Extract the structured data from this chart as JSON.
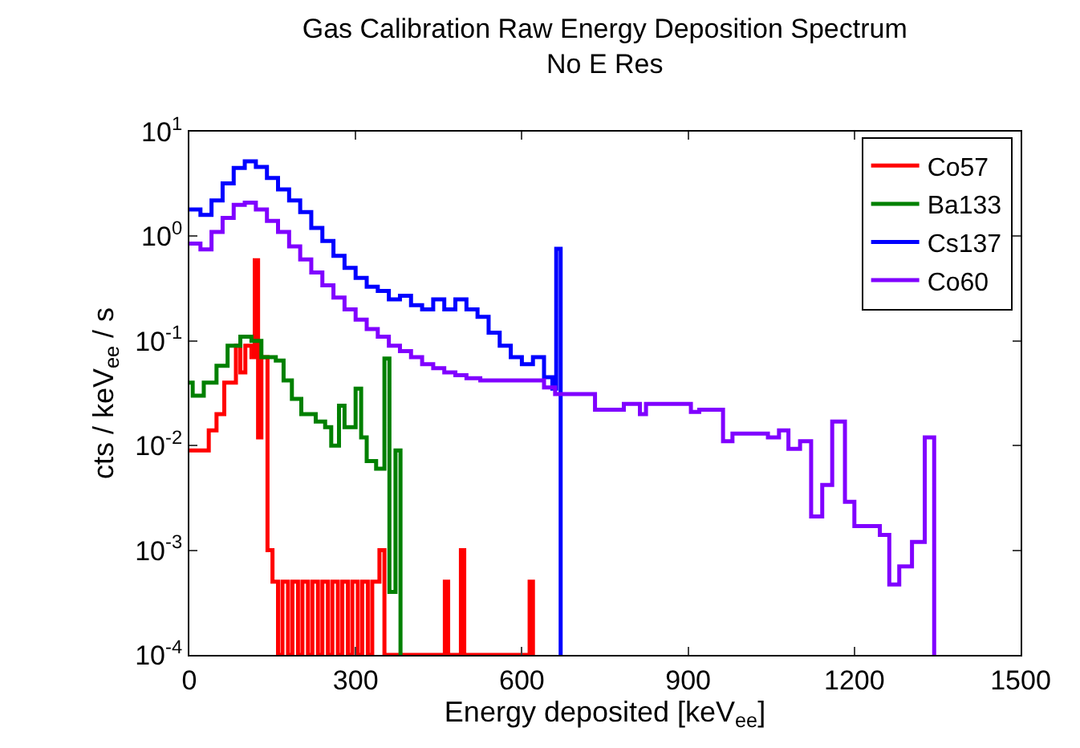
{
  "chart_data": {
    "type": "step",
    "title": "Gas Calibration Raw Energy Deposition Spectrum",
    "subtitle": "No E Res",
    "xlabel": "Energy deposited [keV$_{ee}$]",
    "ylabel": "cts / keV$_{ee}$ / s",
    "log": "y",
    "xlim": [
      0,
      1500
    ],
    "xticks": [
      0,
      300,
      600,
      900,
      1200,
      1500
    ],
    "ylim": [
      0.0001,
      10
    ],
    "yticks": [
      {
        "value": 0.0001,
        "label": "10$^{-4}$"
      },
      {
        "value": 0.001,
        "label": "10$^{-3}$"
      },
      {
        "value": 0.01,
        "label": "10$^{-2}$"
      },
      {
        "value": 0.1,
        "label": "10$^{-1}$"
      },
      {
        "value": 1,
        "label": "10$^{0}$"
      },
      {
        "value": 10,
        "label": "10$^{1}$"
      }
    ],
    "grid": false,
    "legend": "top right",
    "marker": "none",
    "line_style": "solid",
    "series": [
      {
        "name": "Co57",
        "color": "#ff0000",
        "x": [
          0,
          14,
          35,
          49,
          63,
          84,
          92,
          101,
          112,
          118,
          124,
          130,
          141,
          150,
          160,
          168,
          178,
          186,
          196,
          204,
          214,
          222,
          232,
          240,
          250,
          258,
          268,
          276,
          286,
          294,
          304,
          312,
          322,
          330,
          337,
          343,
          352,
          455,
          461,
          467,
          484,
          490,
          496,
          608,
          614,
          620
        ],
        "values": [
          0.009,
          0.009,
          0.014,
          0.02,
          0.04,
          0.09,
          0.05,
          0.09,
          0.07,
          0.59,
          0.012,
          0.07,
          0.001,
          0.0005,
          0.0001,
          0.0005,
          0.0001,
          0.0005,
          0.0001,
          0.0005,
          0.0001,
          0.0005,
          0.0001,
          0.0005,
          0.0001,
          0.0005,
          0.0001,
          0.0005,
          0.0001,
          0.0005,
          0.0001,
          0.0005,
          0.0001,
          0.0005,
          0.0005,
          0.001,
          0.0001,
          0.0001,
          0.0005,
          0.0001,
          0.0001,
          0.001,
          0.0001,
          0.0001,
          0.0005,
          0.0001
        ]
      },
      {
        "name": "Ba133",
        "color": "#008000",
        "x": [
          0,
          6,
          26,
          49,
          69,
          92,
          112,
          130,
          156,
          170,
          185,
          202,
          228,
          245,
          256,
          270,
          280,
          300,
          310,
          320,
          337,
          352,
          361,
          372,
          381
        ],
        "values": [
          0.04,
          0.03,
          0.04,
          0.058,
          0.09,
          0.11,
          0.1,
          0.07,
          0.065,
          0.042,
          0.028,
          0.02,
          0.017,
          0.015,
          0.01,
          0.024,
          0.015,
          0.035,
          0.012,
          0.0071,
          0.006,
          0.068,
          0.0004,
          0.009,
          0.0001
        ]
      },
      {
        "name": "Cs137",
        "color": "#0000ff",
        "x": [
          0,
          20,
          40,
          60,
          80,
          100,
          120,
          140,
          160,
          180,
          200,
          220,
          240,
          260,
          280,
          300,
          320,
          340,
          360,
          380,
          400,
          420,
          440,
          460,
          480,
          500,
          520,
          540,
          560,
          580,
          600,
          620,
          640,
          655,
          662,
          670
        ],
        "values": [
          1.8,
          1.6,
          2.2,
          3.2,
          4.5,
          5.2,
          4.6,
          3.6,
          2.8,
          2.2,
          1.7,
          1.2,
          0.9,
          0.65,
          0.5,
          0.4,
          0.33,
          0.3,
          0.25,
          0.27,
          0.22,
          0.2,
          0.25,
          0.2,
          0.25,
          0.2,
          0.17,
          0.12,
          0.09,
          0.07,
          0.06,
          0.07,
          0.045,
          0.035,
          0.76,
          0.0001
        ]
      },
      {
        "name": "Co60",
        "color": "#8000ff",
        "x": [
          0,
          20,
          40,
          60,
          80,
          100,
          120,
          140,
          160,
          180,
          200,
          220,
          240,
          260,
          280,
          300,
          320,
          340,
          360,
          380,
          400,
          420,
          440,
          460,
          480,
          500,
          525,
          640,
          660,
          732,
          784,
          813,
          824,
          905,
          920,
          963,
          980,
          1044,
          1064,
          1081,
          1102,
          1122,
          1142,
          1160,
          1183,
          1200,
          1246,
          1263,
          1281,
          1304,
          1327,
          1344
        ],
        "values": [
          0.85,
          0.75,
          1.1,
          1.5,
          2.0,
          2.1,
          1.8,
          1.4,
          1.1,
          0.8,
          0.6,
          0.45,
          0.34,
          0.26,
          0.2,
          0.16,
          0.13,
          0.11,
          0.09,
          0.08,
          0.07,
          0.06,
          0.055,
          0.05,
          0.047,
          0.044,
          0.042,
          0.036,
          0.031,
          0.022,
          0.025,
          0.02,
          0.025,
          0.021,
          0.022,
          0.011,
          0.013,
          0.012,
          0.014,
          0.0093,
          0.011,
          0.0021,
          0.0042,
          0.017,
          0.0029,
          0.0017,
          0.0014,
          0.00047,
          0.0007,
          0.0012,
          0.012,
          0.0001
        ]
      }
    ]
  }
}
